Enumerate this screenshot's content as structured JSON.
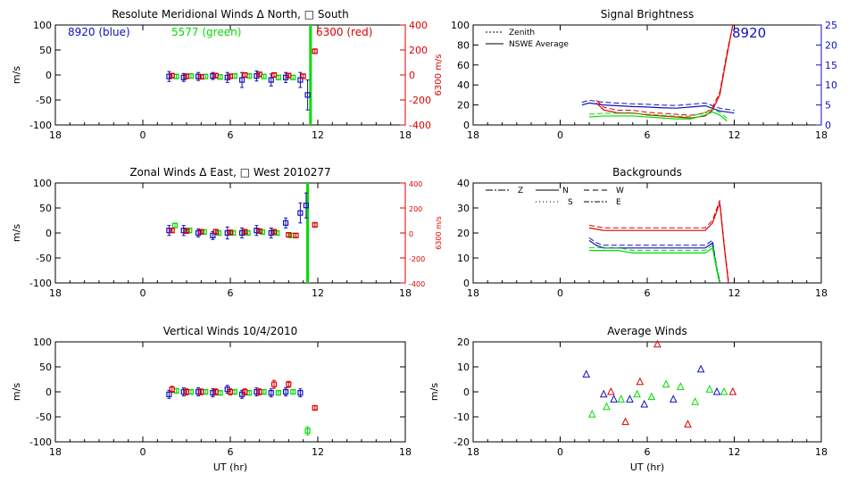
{
  "colors": {
    "blue": "#1010c0",
    "green": "#00dd00",
    "red": "#dd0000",
    "axis": "#000000"
  },
  "chart_data": [
    {
      "id": "p1",
      "type": "scatter",
      "title": "Resolute Meridional Winds Δ North, □ South",
      "xlabel": "",
      "ylabel": "m/s",
      "ylabel_right": "6300 m/s",
      "xlim": [
        -6,
        18
      ],
      "ylim": [
        -100,
        100
      ],
      "ylim_right": [
        -400,
        400
      ],
      "xticks": [
        "18",
        "0",
        "6",
        "12",
        "18"
      ],
      "yticks": [
        -100,
        -50,
        0,
        50,
        100
      ],
      "yticks_right": [
        -400,
        -200,
        0,
        200,
        400
      ],
      "legend_text": [
        "8920 (blue)",
        "5577 (green)",
        "6300 (red)"
      ],
      "vline": {
        "x": 11.5,
        "color": "green"
      },
      "series": [
        {
          "name": "8920",
          "color": "blue",
          "x": [
            1.8,
            2.8,
            3.8,
            4.8,
            5.8,
            6.8,
            7.8,
            8.8,
            9.8,
            10.8,
            11.3
          ],
          "y": [
            -3,
            -5,
            -3,
            -2,
            -5,
            -10,
            -2,
            -10,
            -5,
            -10,
            -40
          ],
          "err": [
            10,
            8,
            8,
            7,
            10,
            15,
            10,
            12,
            10,
            15,
            30
          ]
        },
        {
          "name": "5577",
          "color": "green",
          "x": [
            2.3,
            3.3,
            4.3,
            5.3,
            6.3,
            7.3,
            8.3,
            9.3,
            10.3
          ],
          "y": [
            -3,
            -2,
            -3,
            -4,
            -2,
            -2,
            -3,
            -5,
            -5
          ],
          "err": [
            4,
            4,
            4,
            4,
            4,
            4,
            4,
            4,
            4
          ]
        },
        {
          "name": "6300",
          "color": "red",
          "x": [
            2.0,
            3.0,
            4.0,
            5.0,
            6.0,
            7.0,
            8.0,
            9.0,
            10.0,
            11.0,
            11.8
          ],
          "y": [
            -5,
            -10,
            -15,
            -5,
            -10,
            0,
            5,
            0,
            -5,
            -10,
            190
          ],
          "err": [
            15,
            15,
            15,
            15,
            15,
            15,
            15,
            15,
            15,
            15,
            15
          ],
          "axis": "right"
        }
      ]
    },
    {
      "id": "p2",
      "type": "scatter",
      "title": "Zonal Winds Δ East, □ West 2010277",
      "xlabel": "",
      "ylabel": "m/s",
      "ylabel_right": "6300 m/s",
      "xlim": [
        -6,
        18
      ],
      "ylim": [
        -100,
        100
      ],
      "ylim_right": [
        -400,
        400
      ],
      "xticks": [
        "18",
        "0",
        "6",
        "12",
        "18"
      ],
      "yticks": [
        -100,
        -50,
        0,
        50,
        100
      ],
      "yticks_right": [
        -400,
        -200,
        0,
        200,
        400
      ],
      "vline": {
        "x": 11.3,
        "color": "green"
      },
      "series": [
        {
          "name": "8920",
          "color": "blue",
          "x": [
            1.8,
            2.8,
            3.8,
            4.8,
            5.8,
            6.8,
            7.8,
            8.8,
            9.8,
            10.8,
            11.2
          ],
          "y": [
            5,
            5,
            0,
            -5,
            0,
            0,
            5,
            0,
            20,
            40,
            55
          ],
          "err": [
            10,
            10,
            8,
            8,
            12,
            10,
            10,
            10,
            10,
            20,
            25
          ]
        },
        {
          "name": "5577",
          "color": "green",
          "x": [
            2.2,
            3.2,
            4.2,
            5.2,
            6.2,
            7.2,
            8.2,
            9.2,
            10.2
          ],
          "y": [
            15,
            5,
            2,
            0,
            0,
            0,
            2,
            0,
            -5
          ],
          "err": [
            4,
            4,
            4,
            4,
            4,
            4,
            4,
            4,
            4
          ]
        },
        {
          "name": "6300",
          "color": "red",
          "x": [
            2.0,
            3.0,
            4.0,
            5.0,
            6.0,
            7.0,
            8.0,
            9.0,
            10.0,
            10.5,
            11.8
          ],
          "y": [
            20,
            15,
            10,
            10,
            5,
            10,
            15,
            10,
            -15,
            -20,
            65
          ],
          "err": [
            15,
            15,
            15,
            15,
            15,
            15,
            15,
            15,
            15,
            15,
            15
          ],
          "axis": "right"
        }
      ]
    },
    {
      "id": "p3",
      "type": "scatter",
      "title": "Vertical Winds 10/4/2010",
      "xlabel": "UT (hr)",
      "ylabel": "m/s",
      "xlim": [
        -6,
        18
      ],
      "ylim": [
        -100,
        100
      ],
      "xticks": [
        "18",
        "0",
        "6",
        "12",
        "18"
      ],
      "yticks": [
        -100,
        -50,
        0,
        50,
        100
      ],
      "series": [
        {
          "name": "8920",
          "color": "blue",
          "x": [
            1.8,
            2.8,
            3.8,
            4.8,
            5.8,
            6.8,
            7.8,
            8.8,
            9.8,
            10.8
          ],
          "y": [
            -5,
            0,
            0,
            -2,
            5,
            -5,
            0,
            -2,
            0,
            -2
          ],
          "err": [
            8,
            8,
            8,
            8,
            8,
            8,
            8,
            8,
            8,
            8
          ]
        },
        {
          "name": "5577",
          "color": "green",
          "x": [
            2.3,
            3.3,
            4.3,
            5.3,
            6.3,
            7.3,
            8.3,
            9.3,
            10.3,
            11.3
          ],
          "y": [
            2,
            0,
            0,
            -2,
            0,
            -2,
            0,
            -2,
            0,
            -78
          ],
          "err": [
            4,
            4,
            4,
            4,
            4,
            4,
            4,
            4,
            4,
            8
          ]
        },
        {
          "name": "6300",
          "color": "red",
          "x": [
            2.0,
            3.0,
            4.0,
            5.0,
            6.0,
            7.0,
            8.0,
            9.0,
            10.0,
            11.8
          ],
          "y": [
            5,
            0,
            0,
            0,
            0,
            0,
            0,
            15,
            15,
            -32
          ],
          "err": [
            6,
            6,
            6,
            6,
            6,
            6,
            6,
            8,
            6,
            4
          ]
        }
      ]
    },
    {
      "id": "p4",
      "type": "line",
      "title": "Signal Brightness",
      "xlabel": "",
      "xlim": [
        -6,
        18
      ],
      "ylim": [
        0,
        100
      ],
      "ylim_right": [
        0,
        25
      ],
      "xticks": [
        "18",
        "0",
        "6",
        "12",
        "18"
      ],
      "yticks": [
        0,
        20,
        40,
        60,
        80,
        100
      ],
      "yticks_right": [
        0,
        5,
        10,
        15,
        20,
        25
      ],
      "legend": [
        "Zenith",
        "NSWE Average"
      ],
      "annotation": "8920",
      "series": [
        {
          "name": "8920",
          "color": "blue",
          "axis": "right",
          "x": [
            1.5,
            2,
            3,
            4,
            5,
            6,
            7,
            8,
            9,
            10,
            11,
            12
          ],
          "y": [
            5,
            5.5,
            5,
            4.8,
            4.6,
            4.5,
            4.3,
            4.2,
            4.5,
            4.8,
            3.5,
            3
          ]
        },
        {
          "name": "6300",
          "color": "red",
          "x": [
            2.5,
            3,
            4,
            5,
            6,
            7,
            8,
            9,
            10,
            10.5,
            11,
            11.5,
            11.9
          ],
          "y": [
            22,
            15,
            12,
            12,
            10,
            9,
            8,
            7,
            9,
            15,
            30,
            70,
            100
          ]
        },
        {
          "name": "5577",
          "color": "green",
          "x": [
            2,
            3,
            4,
            5,
            6,
            7,
            8,
            9,
            10,
            10.5,
            11,
            11.5
          ],
          "y": [
            8,
            9,
            9,
            9,
            8,
            7,
            6,
            6,
            10,
            13,
            10,
            4
          ]
        }
      ]
    },
    {
      "id": "p5",
      "type": "line",
      "title": "Backgrounds",
      "xlabel": "",
      "xlim": [
        -6,
        18
      ],
      "ylim": [
        0,
        40
      ],
      "xticks": [
        "18",
        "0",
        "6",
        "12",
        "18"
      ],
      "yticks": [
        0,
        10,
        20,
        30,
        40
      ],
      "legend": [
        "Z",
        "N",
        "W",
        "S",
        "E"
      ],
      "series": [
        {
          "name": "6300",
          "color": "red",
          "x": [
            2,
            3,
            4,
            5,
            6,
            7,
            8,
            9,
            10,
            10.5,
            11,
            11.3,
            11.6
          ],
          "y": [
            22,
            21,
            21,
            21,
            21,
            21,
            21,
            21,
            21,
            24,
            32,
            15,
            0
          ]
        },
        {
          "name": "8920",
          "color": "blue",
          "x": [
            2,
            2.5,
            3,
            4,
            5,
            6,
            7,
            8,
            9,
            10,
            10.5,
            10.8,
            11
          ],
          "y": [
            17,
            15,
            14,
            14,
            14,
            14,
            14,
            14,
            14,
            14,
            16,
            5,
            0
          ]
        },
        {
          "name": "5577",
          "color": "green",
          "x": [
            2,
            3,
            4,
            5,
            6,
            7,
            8,
            9,
            10,
            10.5,
            10.8,
            11
          ],
          "y": [
            13,
            13,
            13,
            12,
            12,
            12,
            12,
            12,
            12,
            14,
            5,
            0
          ]
        }
      ]
    },
    {
      "id": "p6",
      "type": "scatter",
      "title": "Average Winds",
      "xlabel": "UT (hr)",
      "ylabel": "m/s",
      "xlim": [
        -6,
        18
      ],
      "ylim": [
        -20,
        20
      ],
      "xticks": [
        "18",
        "0",
        "6",
        "12",
        "18"
      ],
      "yticks": [
        -20,
        -10,
        0,
        10,
        20
      ],
      "series": [
        {
          "name": "8920",
          "color": "blue",
          "x": [
            1.8,
            3.7,
            5.8,
            7.8,
            9.7,
            10.8,
            3.0,
            4.8
          ],
          "y": [
            7,
            -3,
            -5,
            -3,
            9,
            0,
            -1,
            -3
          ]
        },
        {
          "name": "5577",
          "color": "green",
          "x": [
            2.2,
            3.2,
            4.2,
            5.3,
            6.3,
            7.3,
            8.3,
            9.3,
            10.3,
            11.3
          ],
          "y": [
            -9,
            -6,
            -3,
            -1,
            -2,
            3,
            2,
            -4,
            1,
            0
          ]
        },
        {
          "name": "6300",
          "color": "red",
          "x": [
            3.5,
            4.5,
            5.5,
            6.7,
            8.8,
            11.9
          ],
          "y": [
            0,
            -12,
            4,
            19,
            -13,
            0
          ]
        }
      ]
    }
  ]
}
